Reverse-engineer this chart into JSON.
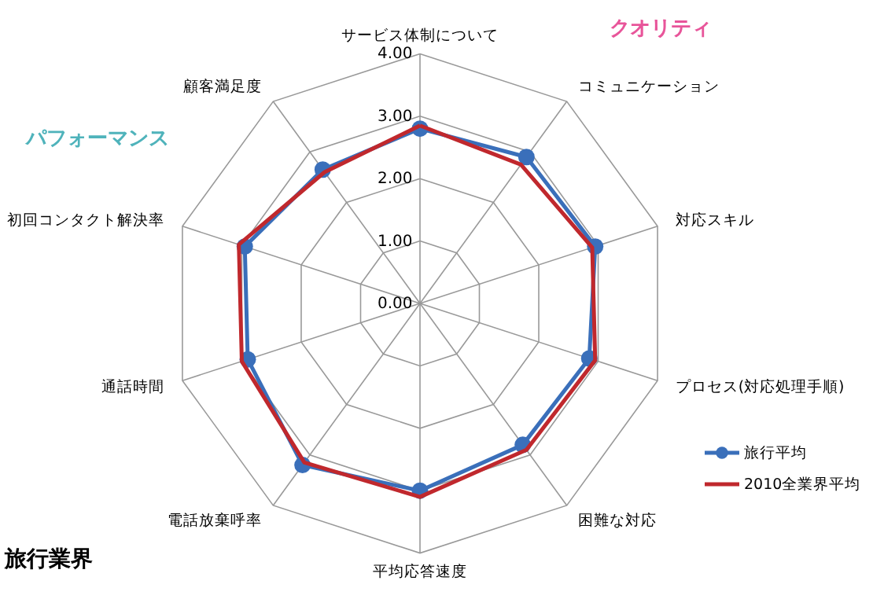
{
  "chart_data": {
    "type": "radar",
    "categories": [
      "サービス体制について",
      "コミュニケーション",
      "対応スキル",
      "プロセス(対応処理手順)",
      "困難な対応",
      "平均応答速度",
      "電話放棄呼率",
      "通話時間",
      "初回コンタクト解決率",
      "顧客満足度"
    ],
    "series": [
      {
        "name": "旅行平均",
        "color": "#3a6fba",
        "marker": "circle",
        "values": [
          2.8,
          2.9,
          2.95,
          2.85,
          2.8,
          3.0,
          3.2,
          2.9,
          2.95,
          2.65
        ]
      },
      {
        "name": "2010全業界平均",
        "color": "#c0282d",
        "marker": "none",
        "values": [
          2.85,
          2.75,
          2.9,
          2.95,
          2.9,
          3.1,
          3.15,
          3.0,
          3.05,
          2.6
        ]
      }
    ],
    "ylim": [
      0,
      4
    ],
    "yticks": [
      {
        "value": 0,
        "label": "0.00"
      },
      {
        "value": 1,
        "label": "1.00"
      },
      {
        "value": 2,
        "label": "2.00"
      },
      {
        "value": 3,
        "label": "3.00"
      },
      {
        "value": 4,
        "label": "4.00"
      }
    ],
    "grid": true,
    "legend": "right",
    "annotations": [
      "クオリティ",
      "パフォーマンス",
      "旅行業界"
    ]
  }
}
